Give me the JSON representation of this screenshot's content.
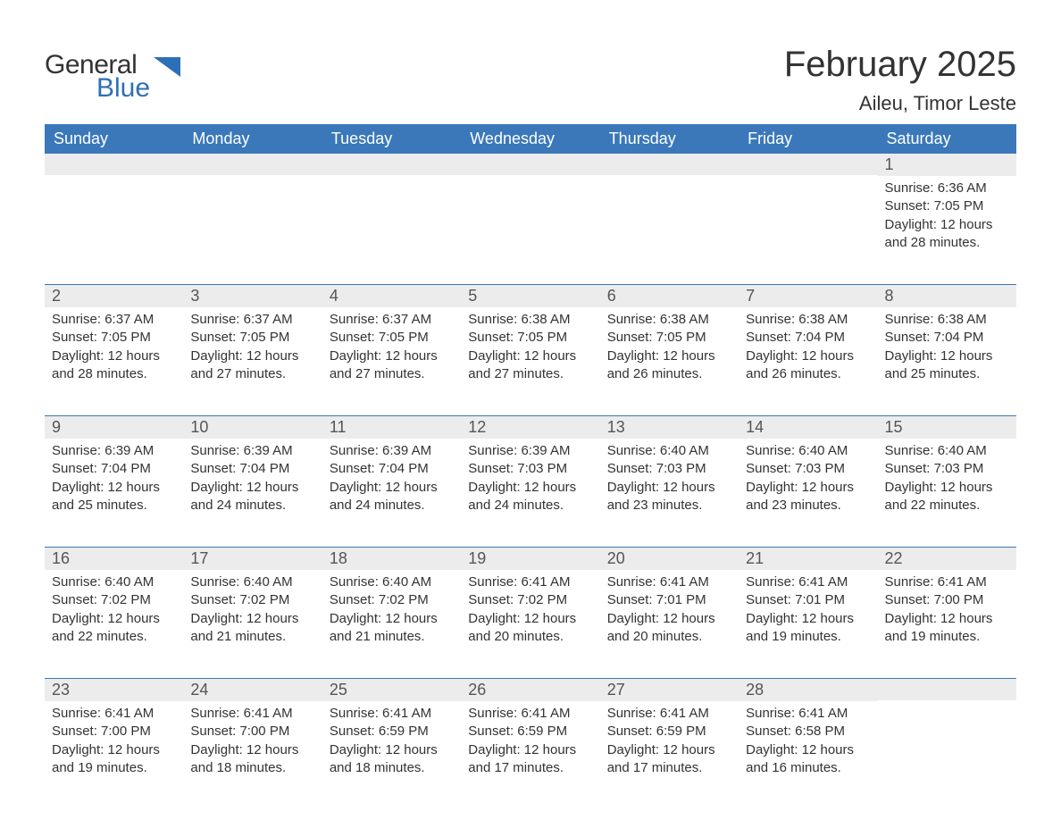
{
  "logo": {
    "general": "General",
    "blue": "Blue"
  },
  "title": "February 2025",
  "location": "Aileu, Timor Leste",
  "colors": {
    "header_bg": "#3a78b9",
    "daynum_bg": "#ececec",
    "text": "#333333",
    "logo_blue": "#2d6fb6",
    "page_bg": "#ffffff"
  },
  "weekdays": [
    "Sunday",
    "Monday",
    "Tuesday",
    "Wednesday",
    "Thursday",
    "Friday",
    "Saturday"
  ],
  "weeks": [
    [
      {
        "n": "",
        "rise": "",
        "set": "",
        "day": ""
      },
      {
        "n": "",
        "rise": "",
        "set": "",
        "day": ""
      },
      {
        "n": "",
        "rise": "",
        "set": "",
        "day": ""
      },
      {
        "n": "",
        "rise": "",
        "set": "",
        "day": ""
      },
      {
        "n": "",
        "rise": "",
        "set": "",
        "day": ""
      },
      {
        "n": "",
        "rise": "",
        "set": "",
        "day": ""
      },
      {
        "n": "1",
        "rise": "Sunrise: 6:36 AM",
        "set": "Sunset: 7:05 PM",
        "day": "Daylight: 12 hours and 28 minutes."
      }
    ],
    [
      {
        "n": "2",
        "rise": "Sunrise: 6:37 AM",
        "set": "Sunset: 7:05 PM",
        "day": "Daylight: 12 hours and 28 minutes."
      },
      {
        "n": "3",
        "rise": "Sunrise: 6:37 AM",
        "set": "Sunset: 7:05 PM",
        "day": "Daylight: 12 hours and 27 minutes."
      },
      {
        "n": "4",
        "rise": "Sunrise: 6:37 AM",
        "set": "Sunset: 7:05 PM",
        "day": "Daylight: 12 hours and 27 minutes."
      },
      {
        "n": "5",
        "rise": "Sunrise: 6:38 AM",
        "set": "Sunset: 7:05 PM",
        "day": "Daylight: 12 hours and 27 minutes."
      },
      {
        "n": "6",
        "rise": "Sunrise: 6:38 AM",
        "set": "Sunset: 7:05 PM",
        "day": "Daylight: 12 hours and 26 minutes."
      },
      {
        "n": "7",
        "rise": "Sunrise: 6:38 AM",
        "set": "Sunset: 7:04 PM",
        "day": "Daylight: 12 hours and 26 minutes."
      },
      {
        "n": "8",
        "rise": "Sunrise: 6:38 AM",
        "set": "Sunset: 7:04 PM",
        "day": "Daylight: 12 hours and 25 minutes."
      }
    ],
    [
      {
        "n": "9",
        "rise": "Sunrise: 6:39 AM",
        "set": "Sunset: 7:04 PM",
        "day": "Daylight: 12 hours and 25 minutes."
      },
      {
        "n": "10",
        "rise": "Sunrise: 6:39 AM",
        "set": "Sunset: 7:04 PM",
        "day": "Daylight: 12 hours and 24 minutes."
      },
      {
        "n": "11",
        "rise": "Sunrise: 6:39 AM",
        "set": "Sunset: 7:04 PM",
        "day": "Daylight: 12 hours and 24 minutes."
      },
      {
        "n": "12",
        "rise": "Sunrise: 6:39 AM",
        "set": "Sunset: 7:03 PM",
        "day": "Daylight: 12 hours and 24 minutes."
      },
      {
        "n": "13",
        "rise": "Sunrise: 6:40 AM",
        "set": "Sunset: 7:03 PM",
        "day": "Daylight: 12 hours and 23 minutes."
      },
      {
        "n": "14",
        "rise": "Sunrise: 6:40 AM",
        "set": "Sunset: 7:03 PM",
        "day": "Daylight: 12 hours and 23 minutes."
      },
      {
        "n": "15",
        "rise": "Sunrise: 6:40 AM",
        "set": "Sunset: 7:03 PM",
        "day": "Daylight: 12 hours and 22 minutes."
      }
    ],
    [
      {
        "n": "16",
        "rise": "Sunrise: 6:40 AM",
        "set": "Sunset: 7:02 PM",
        "day": "Daylight: 12 hours and 22 minutes."
      },
      {
        "n": "17",
        "rise": "Sunrise: 6:40 AM",
        "set": "Sunset: 7:02 PM",
        "day": "Daylight: 12 hours and 21 minutes."
      },
      {
        "n": "18",
        "rise": "Sunrise: 6:40 AM",
        "set": "Sunset: 7:02 PM",
        "day": "Daylight: 12 hours and 21 minutes."
      },
      {
        "n": "19",
        "rise": "Sunrise: 6:41 AM",
        "set": "Sunset: 7:02 PM",
        "day": "Daylight: 12 hours and 20 minutes."
      },
      {
        "n": "20",
        "rise": "Sunrise: 6:41 AM",
        "set": "Sunset: 7:01 PM",
        "day": "Daylight: 12 hours and 20 minutes."
      },
      {
        "n": "21",
        "rise": "Sunrise: 6:41 AM",
        "set": "Sunset: 7:01 PM",
        "day": "Daylight: 12 hours and 19 minutes."
      },
      {
        "n": "22",
        "rise": "Sunrise: 6:41 AM",
        "set": "Sunset: 7:00 PM",
        "day": "Daylight: 12 hours and 19 minutes."
      }
    ],
    [
      {
        "n": "23",
        "rise": "Sunrise: 6:41 AM",
        "set": "Sunset: 7:00 PM",
        "day": "Daylight: 12 hours and 19 minutes."
      },
      {
        "n": "24",
        "rise": "Sunrise: 6:41 AM",
        "set": "Sunset: 7:00 PM",
        "day": "Daylight: 12 hours and 18 minutes."
      },
      {
        "n": "25",
        "rise": "Sunrise: 6:41 AM",
        "set": "Sunset: 6:59 PM",
        "day": "Daylight: 12 hours and 18 minutes."
      },
      {
        "n": "26",
        "rise": "Sunrise: 6:41 AM",
        "set": "Sunset: 6:59 PM",
        "day": "Daylight: 12 hours and 17 minutes."
      },
      {
        "n": "27",
        "rise": "Sunrise: 6:41 AM",
        "set": "Sunset: 6:59 PM",
        "day": "Daylight: 12 hours and 17 minutes."
      },
      {
        "n": "28",
        "rise": "Sunrise: 6:41 AM",
        "set": "Sunset: 6:58 PM",
        "day": "Daylight: 12 hours and 16 minutes."
      },
      {
        "n": "",
        "rise": "",
        "set": "",
        "day": ""
      }
    ]
  ]
}
